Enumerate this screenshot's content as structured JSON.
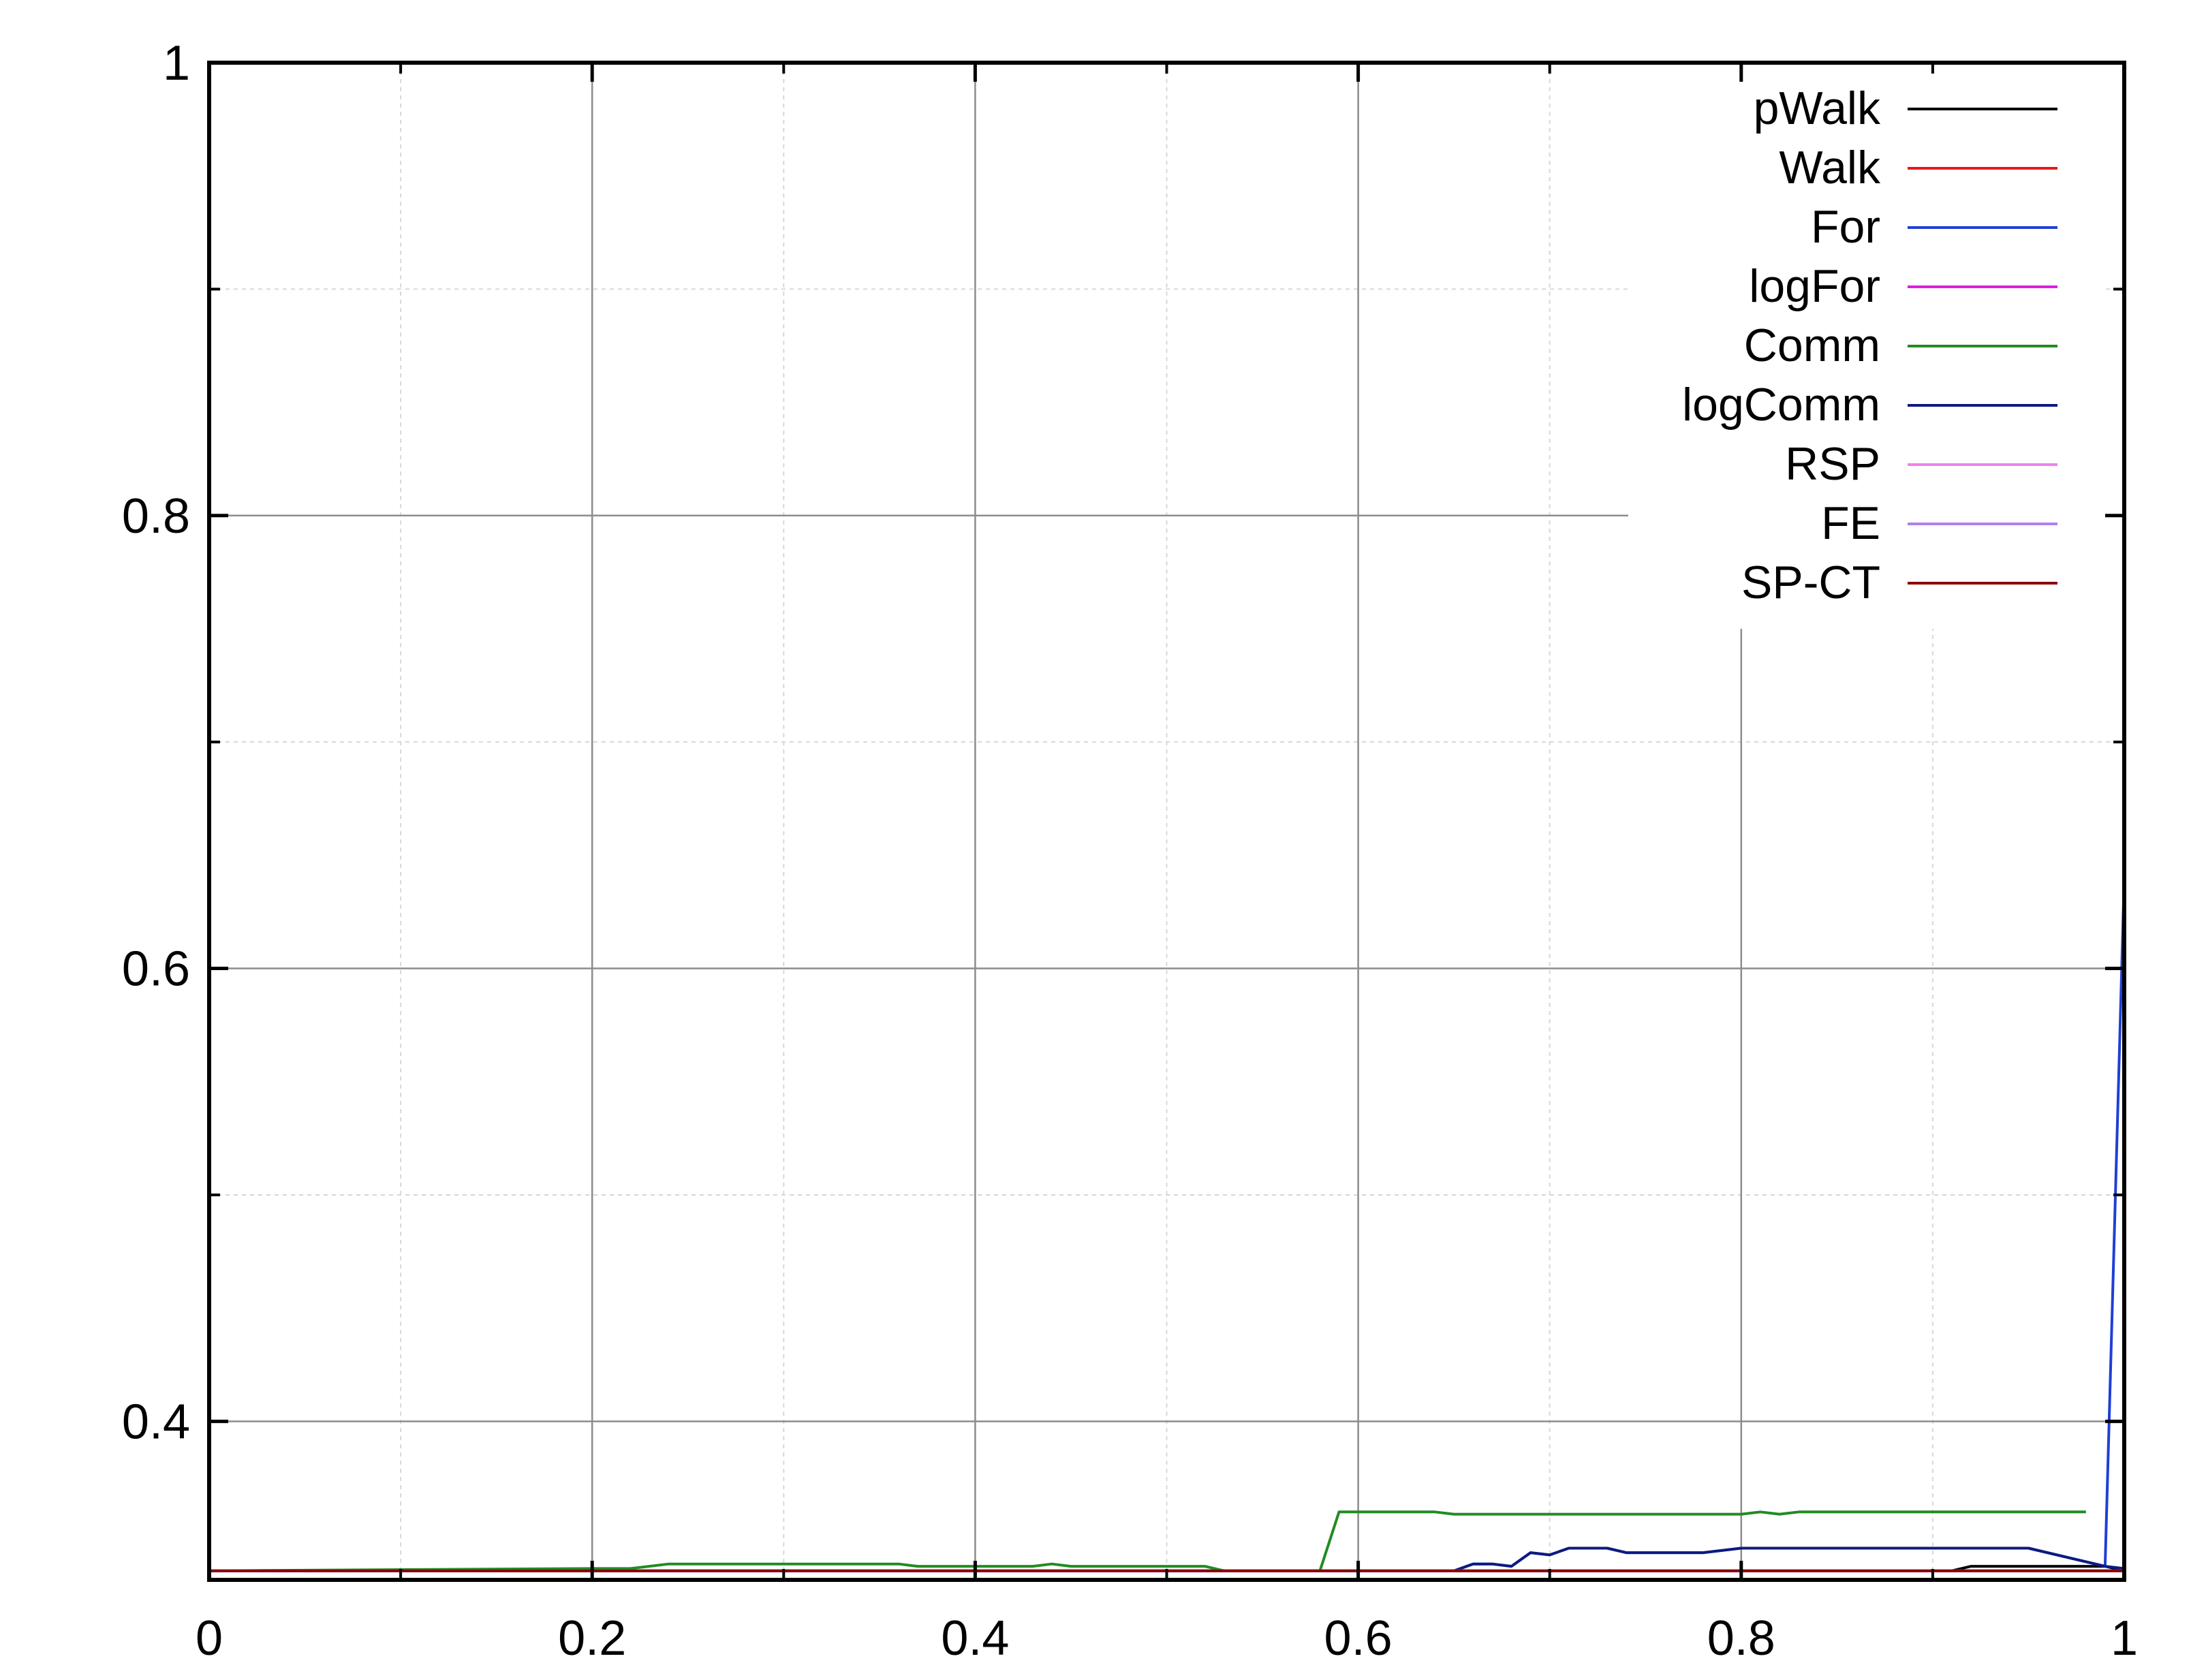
{
  "chart_data": {
    "type": "line",
    "title": "",
    "xlabel": "",
    "ylabel": "",
    "xlim": [
      0,
      1
    ],
    "ylim": [
      0.33,
      1
    ],
    "x_ticks": [
      {
        "value": 0,
        "label": "0"
      },
      {
        "value": 0.2,
        "label": "0.2"
      },
      {
        "value": 0.4,
        "label": "0.4"
      },
      {
        "value": 0.6,
        "label": "0.6"
      },
      {
        "value": 0.8,
        "label": "0.8"
      },
      {
        "value": 1,
        "label": "1"
      }
    ],
    "y_ticks": [
      {
        "value": 0.4,
        "label": "0.4"
      },
      {
        "value": 0.6,
        "label": "0.6"
      },
      {
        "value": 0.8,
        "label": "0.8"
      },
      {
        "value": 1,
        "label": "1"
      }
    ],
    "x_minor_ticks": [
      0.1,
      0.3,
      0.5,
      0.7,
      0.9
    ],
    "y_minor_ticks": [
      0.5,
      0.7,
      0.9
    ],
    "grid": true,
    "legend_position": "top-right",
    "series": [
      {
        "name": "pWalk",
        "color": "#000000",
        "x": [
          0,
          0.91,
          0.92,
          0.99,
          1.0
        ],
        "y": [
          0.334,
          0.334,
          0.336,
          0.336,
          0.334
        ]
      },
      {
        "name": "Walk",
        "color": "#e41a1c",
        "x": [
          0,
          1.0
        ],
        "y": [
          0.334,
          0.334
        ]
      },
      {
        "name": "For",
        "color": "#1f3fd6",
        "x": [
          0,
          0.65,
          0.66,
          0.67,
          0.68,
          0.69,
          0.7,
          0.71,
          0.72,
          0.73,
          0.74,
          0.76,
          0.78,
          0.8,
          0.81,
          0.83,
          0.9,
          0.95,
          0.99,
          1.0
        ],
        "y": [
          0.334,
          0.334,
          0.337,
          0.337,
          0.336,
          0.342,
          0.341,
          0.344,
          0.344,
          0.344,
          0.342,
          0.342,
          0.342,
          0.344,
          0.344,
          0.344,
          0.344,
          0.344,
          0.336,
          0.64
        ]
      },
      {
        "name": "logFor",
        "color": "#e01ee0",
        "x": [
          0,
          1.0
        ],
        "y": [
          0.334,
          0.334
        ]
      },
      {
        "name": "Comm",
        "color": "#238b23",
        "x": [
          0,
          0.2,
          0.22,
          0.24,
          0.3,
          0.36,
          0.37,
          0.4,
          0.43,
          0.44,
          0.45,
          0.52,
          0.53,
          0.58,
          0.59,
          0.64,
          0.65,
          0.7,
          0.8,
          0.81,
          0.82,
          0.83,
          0.9,
          0.98
        ],
        "y": [
          0.334,
          0.335,
          0.335,
          0.337,
          0.337,
          0.337,
          0.336,
          0.336,
          0.336,
          0.337,
          0.336,
          0.336,
          0.334,
          0.334,
          0.36,
          0.36,
          0.359,
          0.359,
          0.359,
          0.36,
          0.359,
          0.36,
          0.36,
          0.36
        ]
      },
      {
        "name": "logComm",
        "color": "#0d1a80",
        "x": [
          0,
          0.65,
          0.66,
          0.67,
          0.68,
          0.69,
          0.7,
          0.71,
          0.72,
          0.73,
          0.74,
          0.76,
          0.78,
          0.8,
          0.81,
          0.83,
          0.9,
          0.95,
          0.99,
          1.0
        ],
        "y": [
          0.334,
          0.334,
          0.337,
          0.337,
          0.336,
          0.342,
          0.341,
          0.344,
          0.344,
          0.344,
          0.342,
          0.342,
          0.342,
          0.344,
          0.344,
          0.344,
          0.344,
          0.344,
          0.336,
          0.335
        ]
      },
      {
        "name": "RSP",
        "color": "#ee82ee",
        "x": [
          0,
          1.0
        ],
        "y": [
          0.334,
          0.334
        ]
      },
      {
        "name": "FE",
        "color": "#b07ff0",
        "x": [
          0,
          1.0
        ],
        "y": [
          0.334,
          0.334
        ]
      },
      {
        "name": "SP-CT",
        "color": "#8b0000",
        "x": [
          0,
          1.0
        ],
        "y": [
          0.334,
          0.334
        ]
      }
    ]
  }
}
